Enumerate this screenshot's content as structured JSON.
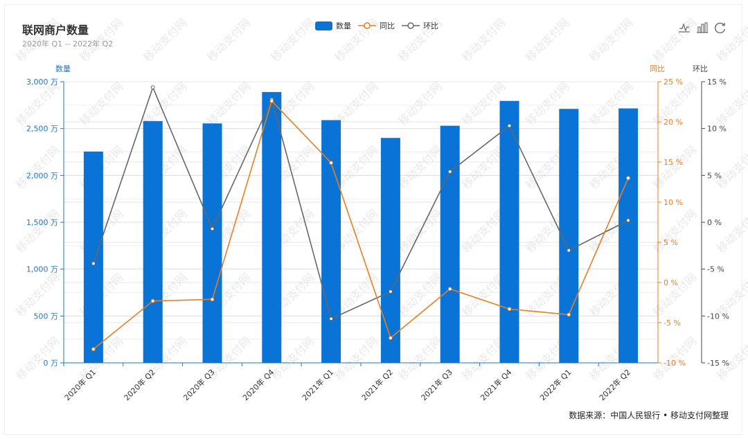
{
  "title": "联网商户数量",
  "subtitle": "2020年 Q1 -- 2022年 Q2",
  "source": "数据来源：中国人民银行 • 移动支付网整理",
  "watermark": "移动支付网",
  "legend": [
    {
      "name": "数量",
      "kind": "bar",
      "color": "#0a74d6"
    },
    {
      "name": "同比",
      "kind": "line",
      "color": "#e67e22"
    },
    {
      "name": "环比",
      "kind": "line",
      "color": "#666666"
    }
  ],
  "toolbox": {
    "line_icon": "line-chart-icon",
    "bar_icon": "bar-chart-icon",
    "restore_icon": "restore-icon"
  },
  "colors": {
    "bar": "#0a74d6",
    "yoy": "#e67e22",
    "qoq": "#666666",
    "left_axis": "#1f77c4",
    "right_axis": "#e67e22",
    "far_axis": "#444444"
  },
  "chart_data": {
    "type": "bar",
    "categories": [
      "2020年 Q1",
      "2020年 Q2",
      "2020年 Q3",
      "2020年 Q4",
      "2021年 Q1",
      "2021年 Q2",
      "2021年 Q3",
      "2021年 Q4",
      "2022年 Q1",
      "2022年 Q2"
    ],
    "series": [
      {
        "name": "数量",
        "type": "bar",
        "axis": "left",
        "unit": "万",
        "values": [
          2255,
          2580,
          2555,
          2890,
          2590,
          2400,
          2530,
          2795,
          2710,
          2715
        ]
      },
      {
        "name": "同比",
        "type": "line",
        "axis": "right",
        "unit": "%",
        "values": [
          -8.3,
          -2.3,
          -2.1,
          22.6,
          14.9,
          -6.9,
          -0.8,
          -3.3,
          -4.0,
          13.0
        ]
      },
      {
        "name": "环比",
        "type": "line",
        "axis": "far_right",
        "unit": "%",
        "values": [
          -4.4,
          14.4,
          -0.7,
          13.1,
          -10.3,
          -7.4,
          5.4,
          10.3,
          -3.0,
          0.2
        ]
      }
    ],
    "axes": {
      "left": {
        "label": "数量",
        "min": 0,
        "max": 3000,
        "step": 500,
        "ticks": [
          "0 万",
          "500 万",
          "1,000 万",
          "1,500 万",
          "2,000 万",
          "2,500 万",
          "3,000 万"
        ]
      },
      "right": {
        "label": "同比",
        "min": -10,
        "max": 25,
        "step": 5,
        "ticks": [
          "-10 %",
          "-5 %",
          "0 %",
          "5 %",
          "10 %",
          "15 %",
          "20 %",
          "25 %"
        ]
      },
      "far_right": {
        "label": "环比",
        "min": -15,
        "max": 15,
        "step": 5,
        "ticks": [
          "-15 %",
          "-10 %",
          "-5 %",
          "0 %",
          "5 %",
          "10 %",
          "15 %"
        ]
      }
    },
    "grid": true,
    "legend_position": "top-center"
  }
}
